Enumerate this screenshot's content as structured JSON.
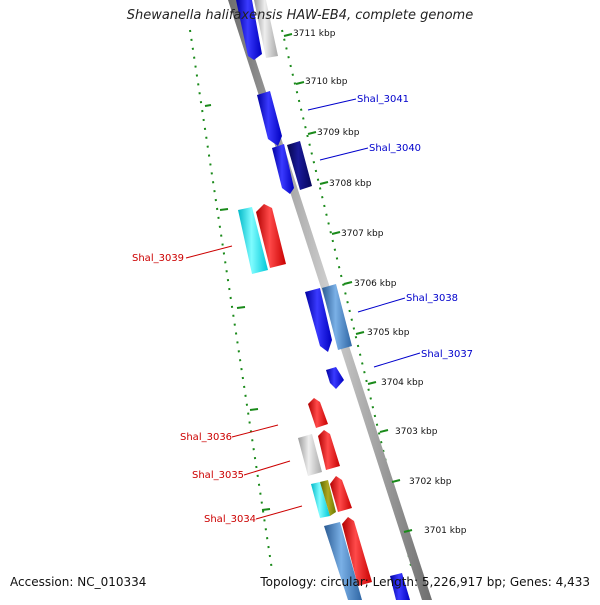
{
  "title": "Shewanella halifaxensis HAW-EB4, complete genome",
  "footer": {
    "accession": "Accession: NC_010334",
    "summary": "Topology: circular; Length: 5,226,917 bp; Genes: 4,433"
  },
  "ticks": [
    "3711 kbp",
    "3710 kbp",
    "3709 kbp",
    "3708 kbp",
    "3707 kbp",
    "3706 kbp",
    "3705 kbp",
    "3704 kbp",
    "3703 kbp",
    "3702 kbp",
    "3701 kbp"
  ],
  "gene_labels": {
    "shal_3041": "Shal_3041",
    "shal_3040": "Shal_3040",
    "shal_3039": "Shal_3039",
    "shal_3038": "Shal_3038",
    "shal_3037": "Shal_3037",
    "shal_3036": "Shal_3036",
    "shal_3035": "Shal_3035",
    "shal_3034": "Shal_3034"
  },
  "colors": {
    "forward_label": "#0000cc",
    "reverse_label": "#cc0000",
    "blue": "#1010ee",
    "navy": "#0a0a7a",
    "steel": "#4a86c8",
    "cyan": "#00e5e5",
    "red": "#ee1010",
    "gray": "#c8c8c8",
    "olive": "#8a8a10",
    "green_dots": "#1a8a1a"
  }
}
